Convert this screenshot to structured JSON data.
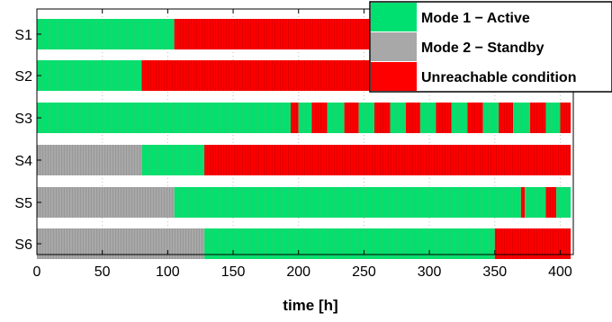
{
  "chart_data": {
    "type": "timeline",
    "xlabel": "time [h]",
    "xlim": [
      0,
      410
    ],
    "xticks": [
      0,
      50,
      100,
      150,
      200,
      250,
      300,
      350,
      400
    ],
    "grid": "dotted vertical",
    "legend_position": "top-right",
    "states": [
      {
        "key": "active",
        "name": "Mode 1 − Active",
        "color": "#00e070"
      },
      {
        "key": "standby",
        "name": "Mode 2 − Standby",
        "color": "#a8a8a8"
      },
      {
        "key": "unreachable",
        "name": "Unreachable condition",
        "color": "#ff0000"
      }
    ],
    "rows": [
      {
        "name": "S1",
        "segments": [
          {
            "start": 0,
            "end": 105,
            "state": "active"
          },
          {
            "start": 105,
            "end": 408,
            "state": "unreachable"
          }
        ]
      },
      {
        "name": "S2",
        "segments": [
          {
            "start": 0,
            "end": 80,
            "state": "active"
          },
          {
            "start": 80,
            "end": 408,
            "state": "unreachable"
          }
        ]
      },
      {
        "name": "S3",
        "segments": [
          {
            "start": 0,
            "end": 194,
            "state": "active"
          },
          {
            "start": 194,
            "end": 200,
            "state": "unreachable"
          },
          {
            "start": 200,
            "end": 210,
            "state": "active"
          },
          {
            "start": 210,
            "end": 222,
            "state": "unreachable"
          },
          {
            "start": 222,
            "end": 235,
            "state": "active"
          },
          {
            "start": 235,
            "end": 246,
            "state": "unreachable"
          },
          {
            "start": 246,
            "end": 258,
            "state": "active"
          },
          {
            "start": 258,
            "end": 270,
            "state": "unreachable"
          },
          {
            "start": 270,
            "end": 282,
            "state": "active"
          },
          {
            "start": 282,
            "end": 293,
            "state": "unreachable"
          },
          {
            "start": 293,
            "end": 305,
            "state": "active"
          },
          {
            "start": 305,
            "end": 317,
            "state": "unreachable"
          },
          {
            "start": 317,
            "end": 329,
            "state": "active"
          },
          {
            "start": 329,
            "end": 341,
            "state": "unreachable"
          },
          {
            "start": 341,
            "end": 353,
            "state": "active"
          },
          {
            "start": 353,
            "end": 364,
            "state": "unreachable"
          },
          {
            "start": 364,
            "end": 377,
            "state": "active"
          },
          {
            "start": 377,
            "end": 389,
            "state": "unreachable"
          },
          {
            "start": 389,
            "end": 400,
            "state": "active"
          },
          {
            "start": 400,
            "end": 408,
            "state": "unreachable"
          }
        ]
      },
      {
        "name": "S4",
        "segments": [
          {
            "start": 0,
            "end": 80,
            "state": "standby"
          },
          {
            "start": 80,
            "end": 128,
            "state": "active"
          },
          {
            "start": 128,
            "end": 408,
            "state": "unreachable"
          }
        ]
      },
      {
        "name": "S5",
        "segments": [
          {
            "start": 0,
            "end": 105,
            "state": "standby"
          },
          {
            "start": 105,
            "end": 370,
            "state": "active"
          },
          {
            "start": 370,
            "end": 373,
            "state": "unreachable"
          },
          {
            "start": 373,
            "end": 389,
            "state": "active"
          },
          {
            "start": 389,
            "end": 397,
            "state": "unreachable"
          },
          {
            "start": 397,
            "end": 408,
            "state": "active"
          }
        ]
      },
      {
        "name": "S6",
        "segments": [
          {
            "start": 0,
            "end": 128,
            "state": "standby"
          },
          {
            "start": 128,
            "end": 350,
            "state": "active"
          },
          {
            "start": 350,
            "end": 408,
            "state": "unreachable"
          }
        ]
      }
    ]
  }
}
